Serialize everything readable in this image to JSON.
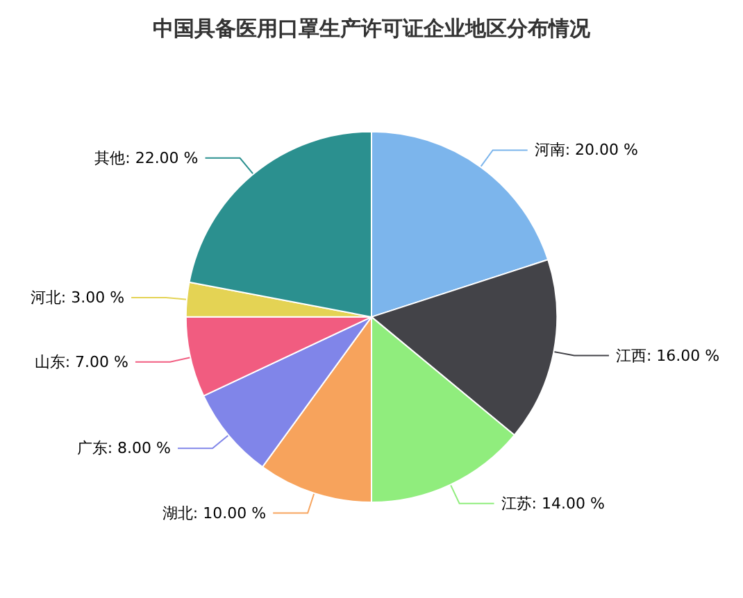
{
  "chart_data": {
    "type": "pie",
    "title": "中国具备医用口罩生产许可证企业地区分布情况",
    "categories": [
      "河南",
      "江西",
      "江苏",
      "湖北",
      "广东",
      "山东",
      "河北",
      "其他"
    ],
    "values": [
      20,
      16,
      14,
      10,
      8,
      7,
      3,
      22
    ],
    "colors": [
      "#7cb5ec",
      "#434348",
      "#90ed7d",
      "#f7a35c",
      "#8085e9",
      "#f15c80",
      "#e4d354",
      "#2b908f"
    ],
    "value_labels": [
      "20.00 %",
      "16.00 %",
      "14.00 %",
      "10.00 %",
      "8.00 %",
      "7.00 %",
      "3.00 %",
      "22.00 %"
    ],
    "legend": false
  }
}
